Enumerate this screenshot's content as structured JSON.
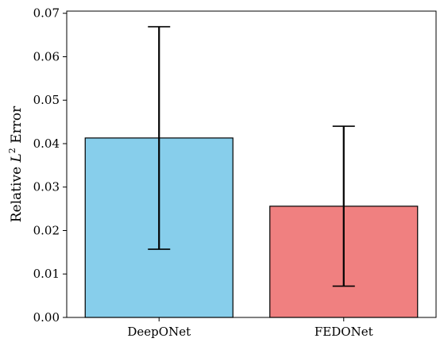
{
  "chart_data": {
    "type": "bar",
    "categories": [
      "DeepONet",
      "FEDONet"
    ],
    "values": [
      0.0413,
      0.0256
    ],
    "errors_lower": [
      0.0157,
      0.0072
    ],
    "errors_upper": [
      0.0669,
      0.044
    ],
    "colors": [
      "#87CEEB",
      "#F08080"
    ],
    "edge_color": "#000000",
    "title": "",
    "xlabel": "",
    "ylabel_prefix": "Relative ",
    "ylabel_var": "L",
    "ylabel_sup": "2",
    "ylabel_suffix": " Error",
    "ylim": [
      0,
      0.0705
    ],
    "yticks": [
      0.0,
      0.01,
      0.02,
      0.03,
      0.04,
      0.05,
      0.06,
      0.07
    ],
    "ytick_labels": [
      "0.00",
      "0.01",
      "0.02",
      "0.03",
      "0.04",
      "0.05",
      "0.06",
      "0.07"
    ],
    "grid": false,
    "legend": "none"
  }
}
